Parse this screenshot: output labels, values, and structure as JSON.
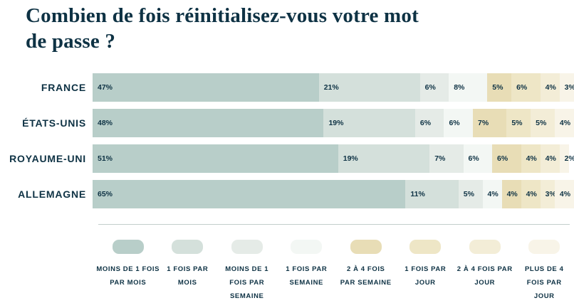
{
  "header": {
    "title_lines": [
      "Combien de fois réinitialisez-vous votre mot",
      "de passe ?"
    ]
  },
  "colors": {
    "text": "#0e3244",
    "background": "#ffffff",
    "divider": "#c3cecb"
  },
  "chart_data": {
    "type": "bar",
    "variant": "horizontal_stacked",
    "title": "Combien de fois réinitialisez-vous votre mot de passe ?",
    "unit": "%",
    "legend_position": "bottom",
    "xlim": [
      0,
      100
    ],
    "categories": [
      "FRANCE",
      "ÉTATS-UNIS",
      "ROYAUME-UNI",
      "ALLEMAGNE"
    ],
    "series": [
      {
        "name": "MOINS DE 1 FOIS PAR MOIS",
        "lines": [
          "MOINS DE 1 FOIS",
          "PAR MOIS"
        ],
        "color": "#b8cec9",
        "values": [
          47,
          48,
          51,
          65
        ]
      },
      {
        "name": "1 FOIS PAR MOIS",
        "lines": [
          "1 FOIS PAR",
          "MOIS"
        ],
        "color": "#d4e0db",
        "values": [
          21,
          19,
          19,
          11
        ]
      },
      {
        "name": "MOINS DE 1 FOIS PAR SEMAINE",
        "lines": [
          "MOINS DE 1",
          "FOIS PAR",
          "SEMAINE"
        ],
        "color": "#e5ebe7",
        "values": [
          6,
          6,
          7,
          5
        ]
      },
      {
        "name": "1 FOIS PAR SEMAINE",
        "lines": [
          "1 FOIS PAR",
          "SEMAINE"
        ],
        "color": "#f3f7f4",
        "values": [
          8,
          6,
          6,
          4
        ]
      },
      {
        "name": "2 À 4 FOIS PAR SEMAINE",
        "lines": [
          "2 À 4 FOIS",
          "PAR SEMAINE"
        ],
        "color": "#e8ddb6",
        "values": [
          5,
          7,
          6,
          4
        ]
      },
      {
        "name": "1 FOIS PAR JOUR",
        "lines": [
          "1 FOIS PAR",
          "JOUR"
        ],
        "color": "#eee6c6",
        "values": [
          6,
          5,
          4,
          4
        ]
      },
      {
        "name": "2 À 4 FOIS PAR JOUR",
        "lines": [
          "2 À 4 FOIS PAR",
          "JOUR"
        ],
        "color": "#f3edd7",
        "values": [
          4,
          5,
          4,
          3
        ]
      },
      {
        "name": "PLUS DE 4 FOIS PAR JOUR",
        "lines": [
          "PLUS DE 4",
          "FOIS PAR",
          "JOUR"
        ],
        "color": "#f8f4e8",
        "values": [
          3,
          4,
          2,
          4
        ]
      }
    ]
  }
}
